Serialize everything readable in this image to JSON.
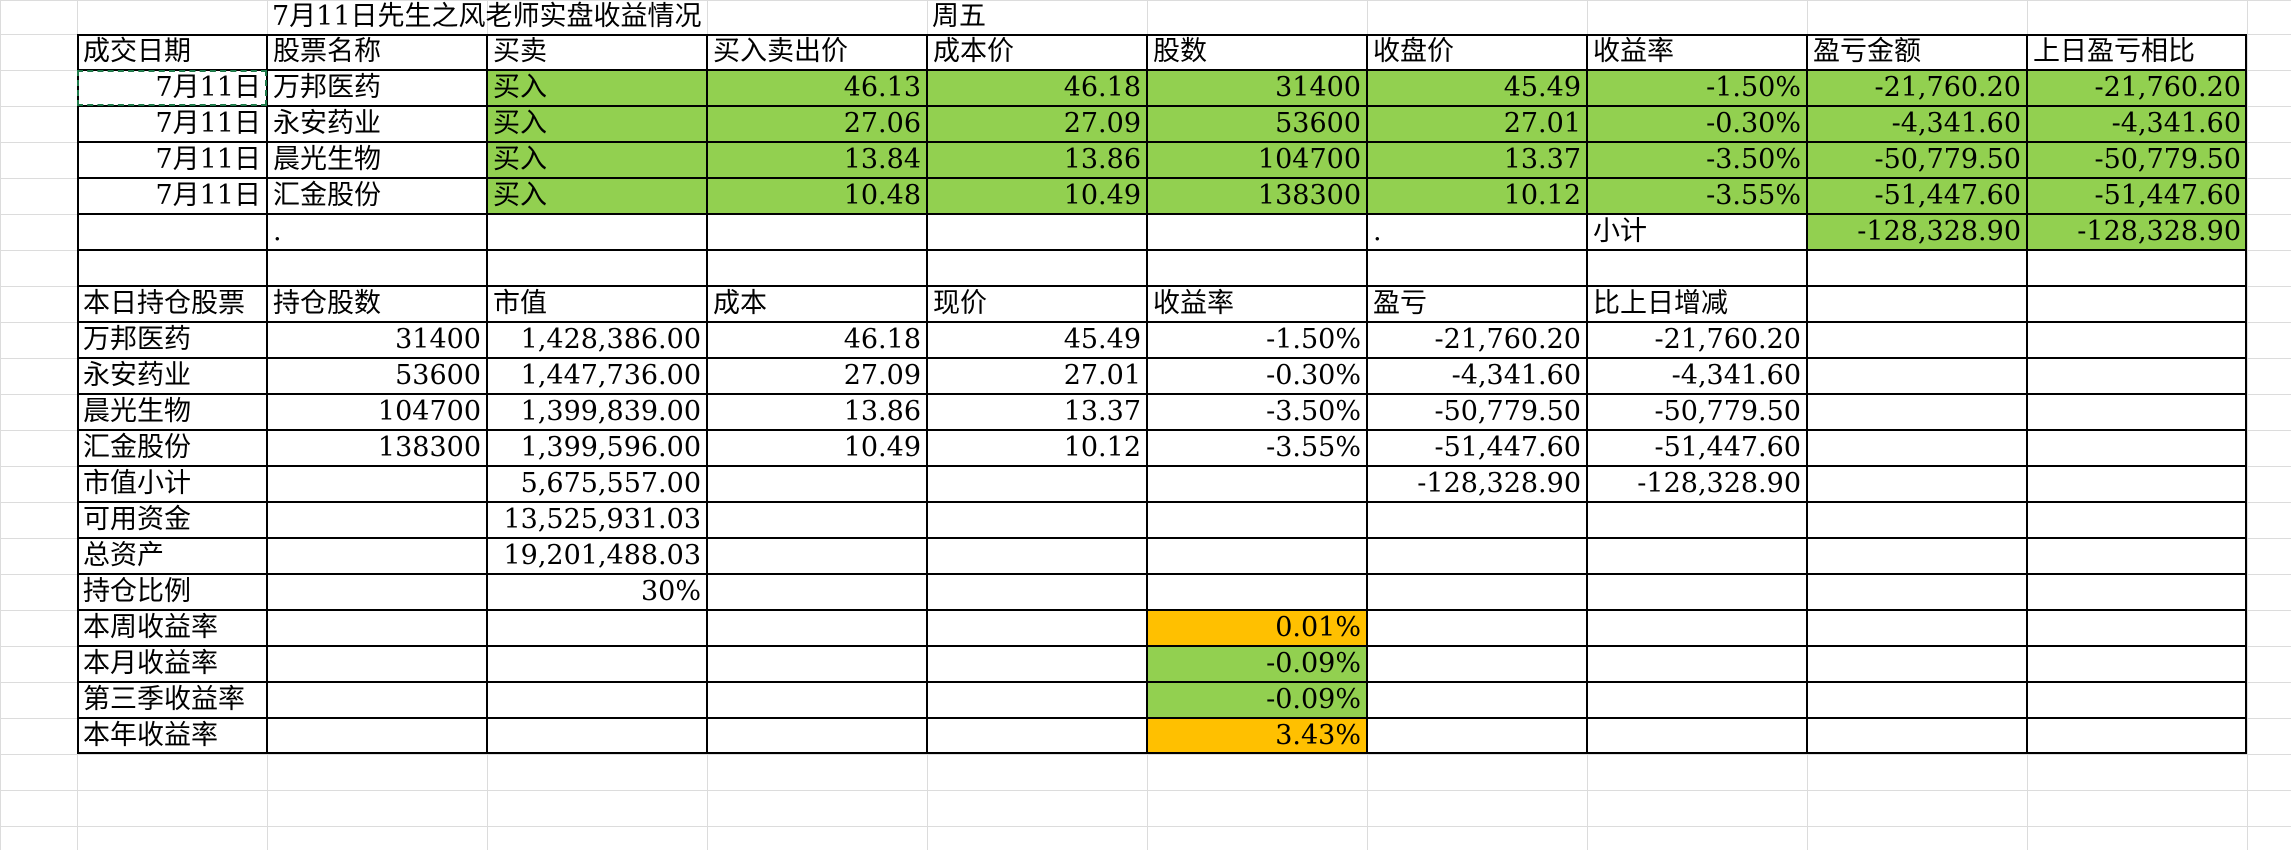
{
  "sheet": {
    "title": "7月11日先生之风老师实盘收益情况",
    "weekday": "周五"
  },
  "trades": {
    "headers": [
      "成交日期",
      "股票名称",
      "买卖",
      "买入卖出价",
      "成本价",
      "股数",
      "收盘价",
      "收益率",
      "盈亏金额",
      "上日盈亏相比"
    ],
    "rows": [
      [
        "7月11日",
        "万邦医药",
        "买入",
        "46.13",
        "46.18",
        "31400",
        "45.49",
        "-1.50%",
        "-21,760.20",
        "-21,760.20"
      ],
      [
        "7月11日",
        "永安药业",
        "买入",
        "27.06",
        "27.09",
        "53600",
        "27.01",
        "-0.30%",
        "-4,341.60",
        "-4,341.60"
      ],
      [
        "7月11日",
        "晨光生物",
        "买入",
        "13.84",
        "13.86",
        "104700",
        "13.37",
        "-3.50%",
        "-50,779.50",
        "-50,779.50"
      ],
      [
        "7月11日",
        "汇金股份",
        "买入",
        "10.48",
        "10.49",
        "138300",
        "10.12",
        "-3.55%",
        "-51,447.60",
        "-51,447.60"
      ]
    ],
    "subtotal": {
      "dot1": ".",
      "dot2": ".",
      "label": "小计",
      "pnl": "-128,328.90",
      "vs_prev": "-128,328.90"
    }
  },
  "holdings": {
    "headers": [
      "本日持仓股票",
      "持仓股数",
      "市值",
      "成本",
      "现价",
      "收益率",
      "盈亏",
      "比上日增减"
    ],
    "rows": [
      [
        "万邦医药",
        "31400",
        "1,428,386.00",
        "46.18",
        "45.49",
        "-1.50%",
        "-21,760.20",
        "-21,760.20"
      ],
      [
        "永安药业",
        "53600",
        "1,447,736.00",
        "27.09",
        "27.01",
        "-0.30%",
        "-4,341.60",
        "-4,341.60"
      ],
      [
        "晨光生物",
        "104700",
        "1,399,839.00",
        "13.86",
        "13.37",
        "-3.50%",
        "-50,779.50",
        "-50,779.50"
      ],
      [
        "汇金股份",
        "138300",
        "1,399,596.00",
        "10.49",
        "10.12",
        "-3.55%",
        "-51,447.60",
        "-51,447.60"
      ]
    ],
    "market_value_subtotal": {
      "label": "市值小计",
      "value": "5,675,557.00",
      "pnl": "-128,328.90",
      "vs_prev": "-128,328.90"
    }
  },
  "summary": {
    "available_funds": {
      "label": "可用资金",
      "value": "13,525,931.03"
    },
    "total_assets": {
      "label": "总资产",
      "value": "19,201,488.03"
    },
    "position_ratio": {
      "label": "持仓比例",
      "value": "30%"
    },
    "weekly_return": {
      "label": "本周收益率",
      "value": "0.01%"
    },
    "monthly_return": {
      "label": "本月收益率",
      "value": "-0.09%"
    },
    "q3_return": {
      "label": "第三季收益率",
      "value": "-0.09%"
    },
    "yearly_return": {
      "label": "本年收益率",
      "value": "3.43%"
    }
  },
  "colors": {
    "green_fill": "#92d050",
    "orange_fill": "#ffc000",
    "selection_dash": "#1f7a4a"
  }
}
